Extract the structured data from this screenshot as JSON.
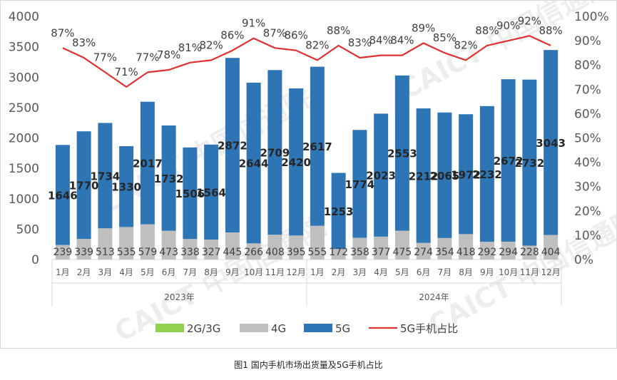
{
  "caption": "图1  国内手机市场出货量及5G手机占比",
  "watermark": "CAICT 中国信通院",
  "colors": {
    "g2g3": "#92D050",
    "g4": "#BFBFBF",
    "g5": "#2E75B6",
    "ratio": "#E03030",
    "axis": "#D9D9D9"
  },
  "chart_data": {
    "type": "bar",
    "stacked": true,
    "months": [
      "1月",
      "2月",
      "3月",
      "4月",
      "5月",
      "6月",
      "7月",
      "8月",
      "9月",
      "10月",
      "11月",
      "12月",
      "1月",
      "2月",
      "3月",
      "4月",
      "5月",
      "6月",
      "7月",
      "8月",
      "9月",
      "10月",
      "11月",
      "12月"
    ],
    "year_groups": [
      {
        "label": "2023年",
        "count": 12
      },
      {
        "label": "2024年",
        "count": 12
      }
    ],
    "series": [
      {
        "name": "2G/3G",
        "values": [
          0,
          0,
          0,
          0,
          0,
          0,
          0,
          0,
          0,
          0,
          0,
          0,
          0,
          0,
          0,
          0,
          0,
          0,
          0,
          0,
          0,
          0,
          0,
          0
        ]
      },
      {
        "name": "4G",
        "values": [
          239,
          339,
          513,
          535,
          579,
          473,
          338,
          327,
          445,
          266,
          408,
          395,
          555,
          172,
          358,
          377,
          475,
          274,
          354,
          418,
          292,
          294,
          228,
          404
        ]
      },
      {
        "name": "5G",
        "values": [
          1646,
          1770,
          1734,
          1330,
          2017,
          1732,
          1506,
          1564,
          2872,
          2644,
          2709,
          2420,
          2617,
          1253,
          1774,
          2023,
          2553,
          2212,
          2065,
          1972,
          2232,
          2672,
          2732,
          3043
        ]
      }
    ],
    "ratio_series": {
      "name": "5G手机占比",
      "values": [
        87,
        83,
        77,
        71,
        77,
        78,
        81,
        82,
        86,
        91,
        87,
        86,
        82,
        88,
        83,
        84,
        84,
        89,
        85,
        82,
        88,
        90,
        92,
        88
      ]
    },
    "y_left": {
      "min": 0,
      "max": 4000,
      "step": 500,
      "ticks": [
        "0",
        "500",
        "1000",
        "1500",
        "2000",
        "2500",
        "3000",
        "3500",
        "4000"
      ]
    },
    "y_right": {
      "min": 0,
      "max": 100,
      "step": 10,
      "ticks": [
        "0%",
        "10%",
        "20%",
        "30%",
        "40%",
        "50%",
        "60%",
        "70%",
        "80%",
        "90%",
        "100%"
      ]
    },
    "legend": [
      "2G/3G",
      "4G",
      "5G",
      "5G手机占比"
    ],
    "legend_position": "bottom",
    "grid": false
  }
}
